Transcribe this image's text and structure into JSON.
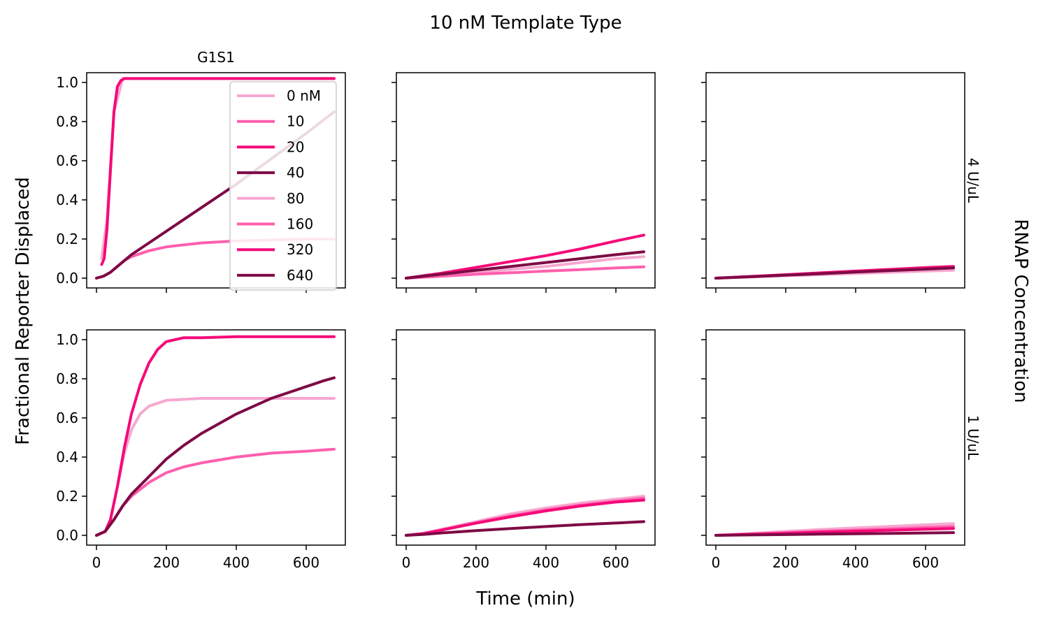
{
  "figure": {
    "suptitle": "10 nM Template Type",
    "xlabel": "Time (min)",
    "ylabel": "Fractional Reporter Displaced",
    "row_group_label": "RNAP Concentration"
  },
  "legend_entries": [
    "0 nM",
    "10",
    "20",
    "40",
    "80",
    "160",
    "320",
    "640"
  ],
  "series_colors": [
    "#f7a8d0",
    "#ff5fae",
    "#f50a78",
    "#7e0a45",
    "#f7a8d0",
    "#ff5fae",
    "#f50a78",
    "#7e0a45"
  ],
  "chart_data": [
    {
      "type": "line",
      "row": 0,
      "col": 0,
      "title": "G1S1",
      "row_label": "",
      "xlim": [
        -28,
        712
      ],
      "ylim": [
        -0.05,
        1.05
      ],
      "xticks": [
        0,
        200,
        400,
        600
      ],
      "yticks": [
        0.0,
        0.2,
        0.4,
        0.6,
        0.8,
        1.0
      ],
      "show_xticklabels": false,
      "show_yticklabels": true,
      "legend": "upper-right",
      "series": [
        {
          "x": [
            15,
            30,
            50,
            75,
            100,
            150,
            200,
            300,
            400,
            500,
            600,
            680
          ],
          "y": [
            0.1,
            0.3,
            0.85,
            1.02,
            1.02,
            1.02,
            1.02,
            1.02,
            1.02,
            1.02,
            1.02,
            1.02
          ]
        },
        {
          "x": [
            0,
            20,
            40,
            60,
            80,
            100,
            150,
            200,
            300,
            400,
            500,
            600,
            680
          ],
          "y": [
            0.0,
            0.01,
            0.03,
            0.06,
            0.09,
            0.11,
            0.14,
            0.16,
            0.18,
            0.19,
            0.195,
            0.2,
            0.2
          ]
        },
        {
          "x": [
            15,
            22,
            30,
            40,
            50,
            60,
            70,
            80,
            120,
            200,
            300,
            400,
            500,
            600,
            680
          ],
          "y": [
            0.07,
            0.1,
            0.25,
            0.55,
            0.85,
            0.98,
            1.01,
            1.02,
            1.02,
            1.02,
            1.02,
            1.02,
            1.02,
            1.02,
            1.02
          ]
        },
        {
          "x": [
            0,
            20,
            40,
            60,
            80,
            100,
            150,
            200,
            300,
            400,
            500,
            600,
            680
          ],
          "y": [
            0.0,
            0.01,
            0.03,
            0.06,
            0.09,
            0.12,
            0.18,
            0.24,
            0.36,
            0.48,
            0.61,
            0.74,
            0.85
          ]
        }
      ]
    },
    {
      "type": "line",
      "row": 0,
      "col": 1,
      "title": "",
      "row_label": "",
      "xlim": [
        -28,
        712
      ],
      "ylim": [
        -0.05,
        1.05
      ],
      "xticks": [
        0,
        200,
        400,
        600
      ],
      "yticks": [
        0.0,
        0.2,
        0.4,
        0.6,
        0.8,
        1.0
      ],
      "show_xticklabels": false,
      "show_yticklabels": false,
      "legend": "none",
      "series": [
        {
          "x": [
            0,
            100,
            200,
            300,
            400,
            500,
            600,
            680
          ],
          "y": [
            0.0,
            0.015,
            0.03,
            0.045,
            0.06,
            0.08,
            0.1,
            0.11
          ]
        },
        {
          "x": [
            0,
            100,
            200,
            300,
            400,
            500,
            600,
            680
          ],
          "y": [
            0.0,
            0.01,
            0.02,
            0.028,
            0.036,
            0.044,
            0.052,
            0.058
          ]
        },
        {
          "x": [
            0,
            100,
            200,
            300,
            400,
            500,
            600,
            680
          ],
          "y": [
            0.0,
            0.025,
            0.055,
            0.085,
            0.115,
            0.15,
            0.19,
            0.22
          ]
        },
        {
          "x": [
            0,
            100,
            200,
            300,
            400,
            500,
            600,
            680
          ],
          "y": [
            0.0,
            0.02,
            0.04,
            0.06,
            0.08,
            0.1,
            0.12,
            0.135
          ]
        }
      ]
    },
    {
      "type": "line",
      "row": 0,
      "col": 2,
      "title": "",
      "row_label": "4 U/uL",
      "xlim": [
        -28,
        712
      ],
      "ylim": [
        -0.05,
        1.05
      ],
      "xticks": [
        0,
        200,
        400,
        600
      ],
      "yticks": [
        0.0,
        0.2,
        0.4,
        0.6,
        0.8,
        1.0
      ],
      "show_xticklabels": false,
      "show_yticklabels": false,
      "legend": "none",
      "series": [
        {
          "x": [
            0,
            100,
            200,
            300,
            400,
            500,
            600,
            680
          ],
          "y": [
            0.0,
            0.006,
            0.012,
            0.018,
            0.024,
            0.03,
            0.036,
            0.04
          ]
        },
        {
          "x": [
            0,
            100,
            200,
            300,
            400,
            500,
            600,
            680
          ],
          "y": [
            0.0,
            0.008,
            0.016,
            0.024,
            0.032,
            0.04,
            0.048,
            0.055
          ]
        },
        {
          "x": [
            0,
            100,
            200,
            300,
            400,
            500,
            600,
            680
          ],
          "y": [
            0.0,
            0.009,
            0.018,
            0.027,
            0.036,
            0.045,
            0.054,
            0.06
          ]
        },
        {
          "x": [
            0,
            100,
            200,
            300,
            400,
            500,
            600,
            680
          ],
          "y": [
            0.0,
            0.007,
            0.015,
            0.023,
            0.031,
            0.039,
            0.046,
            0.052
          ]
        }
      ]
    },
    {
      "type": "line",
      "row": 1,
      "col": 0,
      "title": "",
      "row_label": "",
      "xlim": [
        -28,
        712
      ],
      "ylim": [
        -0.05,
        1.05
      ],
      "xticks": [
        0,
        200,
        400,
        600
      ],
      "yticks": [
        0.0,
        0.2,
        0.4,
        0.6,
        0.8,
        1.0
      ],
      "show_xticklabels": true,
      "show_yticklabels": true,
      "legend": "none",
      "series": [
        {
          "x": [
            0,
            25,
            40,
            60,
            80,
            100,
            125,
            150,
            200,
            250,
            300,
            400,
            500,
            600,
            680
          ],
          "y": [
            0.0,
            0.02,
            0.08,
            0.25,
            0.42,
            0.54,
            0.62,
            0.66,
            0.69,
            0.695,
            0.7,
            0.7,
            0.7,
            0.7,
            0.7
          ]
        },
        {
          "x": [
            0,
            25,
            50,
            75,
            100,
            150,
            200,
            250,
            300,
            400,
            500,
            600,
            680
          ],
          "y": [
            0.0,
            0.02,
            0.08,
            0.15,
            0.2,
            0.27,
            0.32,
            0.35,
            0.37,
            0.4,
            0.42,
            0.43,
            0.44
          ]
        },
        {
          "x": [
            0,
            25,
            40,
            60,
            80,
            100,
            125,
            150,
            175,
            200,
            225,
            250,
            300,
            400,
            500,
            600,
            680
          ],
          "y": [
            0.0,
            0.02,
            0.08,
            0.25,
            0.45,
            0.62,
            0.77,
            0.88,
            0.95,
            0.99,
            1.0,
            1.01,
            1.01,
            1.015,
            1.015,
            1.015,
            1.015
          ]
        },
        {
          "x": [
            0,
            25,
            50,
            75,
            100,
            150,
            200,
            250,
            300,
            350,
            400,
            450,
            500,
            550,
            600,
            650,
            680
          ],
          "y": [
            0.0,
            0.02,
            0.08,
            0.15,
            0.21,
            0.3,
            0.39,
            0.46,
            0.52,
            0.57,
            0.62,
            0.66,
            0.7,
            0.73,
            0.76,
            0.79,
            0.805
          ]
        }
      ]
    },
    {
      "type": "line",
      "row": 1,
      "col": 1,
      "title": "",
      "row_label": "",
      "xlim": [
        -28,
        712
      ],
      "ylim": [
        -0.05,
        1.05
      ],
      "xticks": [
        0,
        200,
        400,
        600
      ],
      "yticks": [
        0.0,
        0.2,
        0.4,
        0.6,
        0.8,
        1.0
      ],
      "show_xticklabels": true,
      "show_yticklabels": false,
      "legend": "none",
      "series": [
        {
          "x": [
            0,
            50,
            100,
            200,
            300,
            400,
            500,
            600,
            680
          ],
          "y": [
            0.0,
            0.01,
            0.03,
            0.07,
            0.11,
            0.14,
            0.165,
            0.185,
            0.2
          ]
        },
        {
          "x": [
            0,
            50,
            100,
            200,
            300,
            400,
            500,
            600,
            680
          ],
          "y": [
            0.0,
            0.01,
            0.028,
            0.065,
            0.1,
            0.13,
            0.155,
            0.175,
            0.19
          ]
        },
        {
          "x": [
            0,
            50,
            100,
            200,
            300,
            400,
            500,
            600,
            680
          ],
          "y": [
            0.0,
            0.009,
            0.026,
            0.062,
            0.095,
            0.125,
            0.15,
            0.17,
            0.18
          ]
        },
        {
          "x": [
            0,
            50,
            100,
            200,
            300,
            400,
            500,
            600,
            680
          ],
          "y": [
            0.0,
            0.005,
            0.012,
            0.024,
            0.035,
            0.045,
            0.055,
            0.063,
            0.07
          ]
        }
      ]
    },
    {
      "type": "line",
      "row": 1,
      "col": 2,
      "title": "",
      "row_label": "1 U/uL",
      "xlim": [
        -28,
        712
      ],
      "ylim": [
        -0.05,
        1.05
      ],
      "xticks": [
        0,
        200,
        400,
        600
      ],
      "yticks": [
        0.0,
        0.2,
        0.4,
        0.6,
        0.8,
        1.0
      ],
      "show_xticklabels": true,
      "show_yticklabels": false,
      "legend": "none",
      "series": [
        {
          "x": [
            0,
            100,
            200,
            300,
            400,
            500,
            600,
            680
          ],
          "y": [
            0.0,
            0.01,
            0.02,
            0.03,
            0.038,
            0.046,
            0.054,
            0.06
          ]
        },
        {
          "x": [
            0,
            100,
            200,
            300,
            400,
            500,
            600,
            680
          ],
          "y": [
            0.0,
            0.007,
            0.014,
            0.021,
            0.027,
            0.033,
            0.04,
            0.045
          ]
        },
        {
          "x": [
            0,
            100,
            200,
            300,
            400,
            500,
            600,
            680
          ],
          "y": [
            0.0,
            0.005,
            0.01,
            0.016,
            0.021,
            0.026,
            0.031,
            0.035
          ]
        },
        {
          "x": [
            0,
            100,
            200,
            300,
            400,
            500,
            600,
            680
          ],
          "y": [
            0.0,
            0.002,
            0.004,
            0.006,
            0.008,
            0.01,
            0.012,
            0.014
          ]
        }
      ]
    }
  ]
}
